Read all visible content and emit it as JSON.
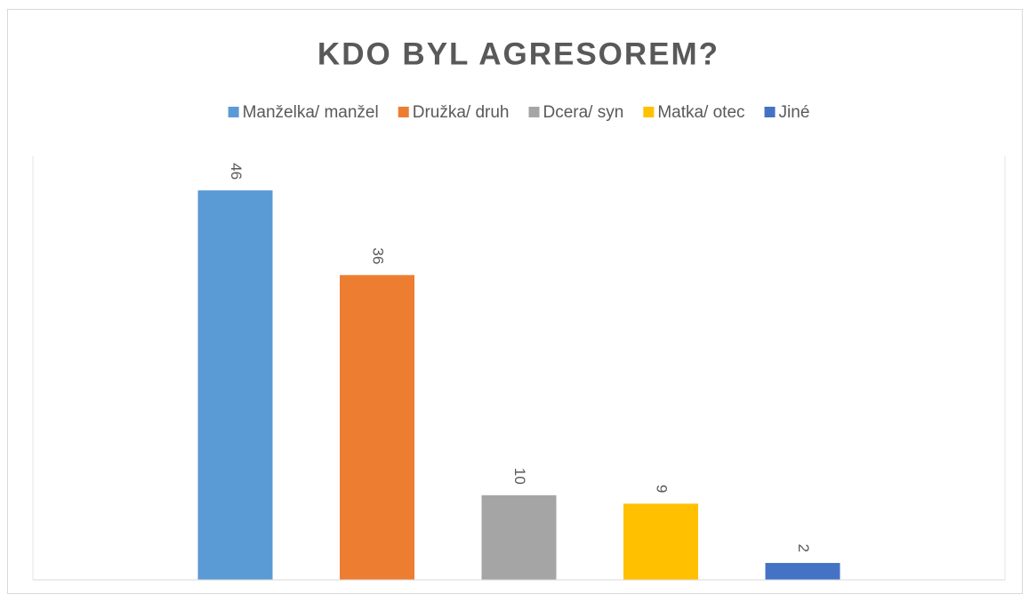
{
  "chart_data": {
    "type": "bar",
    "title": "KDO BYL AGRESOREM?",
    "categories": [
      null
    ],
    "series": [
      {
        "name": "Manželka/ manžel",
        "color": "#5b9bd5",
        "values": [
          46
        ]
      },
      {
        "name": "Družka/ druh",
        "color": "#ed7d31",
        "values": [
          36
        ]
      },
      {
        "name": "Dcera/ syn",
        "color": "#a5a5a5",
        "values": [
          10
        ]
      },
      {
        "name": "Matka/ otec",
        "color": "#ffc000",
        "values": [
          9
        ]
      },
      {
        "name": "Jiné",
        "color": "#4472c4",
        "values": [
          2
        ]
      }
    ],
    "ylim": [
      0,
      50
    ],
    "grid": false,
    "legend": "top"
  }
}
